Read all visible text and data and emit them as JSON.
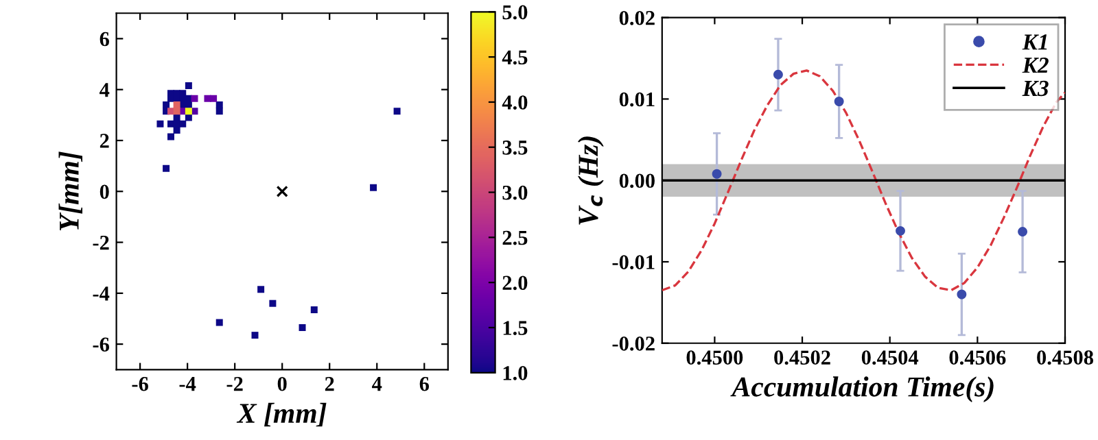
{
  "chart_data": [
    {
      "type": "scatter",
      "xlabel": "X [mm]",
      "ylabel": "Y[mm]",
      "xlim": [
        -7,
        7
      ],
      "ylim": [
        -7,
        7
      ],
      "xticks": [
        -6,
        -4,
        -2,
        0,
        2,
        4,
        6
      ],
      "yticks": [
        -6,
        -4,
        -2,
        0,
        2,
        4,
        6
      ],
      "grid": false,
      "legend": false,
      "clim": [
        1,
        5
      ],
      "cticks": [
        {
          "value": 1,
          "label": "1.0"
        },
        {
          "value": 1.5,
          "label": "1.5"
        },
        {
          "value": 2,
          "label": "2.0"
        },
        {
          "value": 2.5,
          "label": "2.5"
        },
        {
          "value": 3,
          "label": "3.0"
        },
        {
          "value": 3.5,
          "label": "3.5"
        },
        {
          "value": 4,
          "label": "4.0"
        },
        {
          "value": 4.5,
          "label": "4.5"
        },
        {
          "value": 5,
          "label": "5.0"
        }
      ],
      "series": [
        {
          "marker": "square",
          "color": "#0d0887",
          "x": [
            -4.9,
            4.85,
            3.85,
            -0.9,
            -0.4,
            1.35,
            -2.65,
            -1.15,
            0.85,
            -3.95,
            -4.7,
            -4.45,
            -4.2,
            -4.7,
            -4.45,
            -4.2,
            -3.95,
            -2.65,
            -2.65,
            -4.9,
            -4.2,
            -3.95,
            -4.9,
            -4.45,
            -3.95,
            -5.15,
            -4.7,
            -4.45,
            -4.2,
            -4.45,
            -4.7
          ],
          "values": [
            0.9,
            3.15,
            0.15,
            -3.85,
            -4.4,
            -4.65,
            -5.15,
            -5.65,
            -5.35,
            4.15,
            3.85,
            3.85,
            3.85,
            3.65,
            3.65,
            3.65,
            3.65,
            3.4,
            3.15,
            3.4,
            3.4,
            3.4,
            3.15,
            2.9,
            2.9,
            2.65,
            2.65,
            2.65,
            2.65,
            2.4,
            2.15
          ]
        },
        {
          "marker": "square",
          "color": "#6a00a8",
          "x": [
            -3.7,
            -3.15,
            -2.9,
            -4.2
          ],
          "values": [
            3.65,
            3.65,
            3.65,
            3.15
          ]
        },
        {
          "marker": "square",
          "color": "#5302a3",
          "x": [
            -3.7
          ],
          "values": [
            3.15
          ]
        },
        {
          "marker": "square",
          "color": "#d35171",
          "x": [
            -4.7
          ],
          "values": [
            3.15
          ]
        },
        {
          "marker": "square",
          "color": "#e16462",
          "x": [
            -4.45,
            -4.45
          ],
          "values": [
            3.4,
            3.15
          ]
        },
        {
          "marker": "square",
          "color": "#f0f921",
          "x": [
            -3.95
          ],
          "values": [
            3.15
          ]
        },
        {
          "marker": "cross",
          "color": "#000000",
          "x": [
            0
          ],
          "values": [
            0
          ]
        }
      ]
    },
    {
      "type": "scatter",
      "xlabel": "Accumulation Time(s)",
      "ylabel": "V$_{c}$ (Hz)",
      "xlim": [
        0.44988,
        0.4508
      ],
      "ylim": [
        -0.02,
        0.02
      ],
      "xticks": [
        {
          "value": 0.45,
          "label": "0.4500"
        },
        {
          "value": 0.4502,
          "label": "0.4502"
        },
        {
          "value": 0.4504,
          "label": "0.4504"
        },
        {
          "value": 0.4506,
          "label": "0.4506"
        },
        {
          "value": 0.4508,
          "label": "0.4508"
        }
      ],
      "yticks": [
        {
          "value": -0.02,
          "label": "-0.02"
        },
        {
          "value": -0.01,
          "label": "-0.01"
        },
        {
          "value": 0,
          "label": "0.00"
        },
        {
          "value": 0.01,
          "label": "0.01"
        },
        {
          "value": 0.02,
          "label": "0.02"
        }
      ],
      "grid": false,
      "legend": "top right",
      "bands": [
        {
          "axis": "y",
          "from": -0.002,
          "to": 0.002,
          "color": "#c0c0c0"
        }
      ],
      "series": [
        {
          "name": "K1",
          "type": "scatter",
          "marker": "circle",
          "color": "#3a4bab",
          "x": [
            0.450005,
            0.450145,
            0.450284,
            0.450424,
            0.450564,
            0.450703
          ],
          "values": [
            0.0008,
            0.013,
            0.0097,
            -0.0062,
            -0.014,
            -0.0063
          ],
          "errors": [
            0.005,
            0.0044,
            0.0045,
            0.0049,
            0.005,
            0.005
          ]
        },
        {
          "name": "K2",
          "type": "line",
          "line_style": "dashed",
          "color": "#d9363e",
          "x": [
            0.44988,
            0.44991,
            0.44994,
            0.44997,
            0.45,
            0.45003,
            0.45006,
            0.45009,
            0.45012,
            0.45015,
            0.45018,
            0.45021,
            0.45024,
            0.45027,
            0.4503,
            0.45033,
            0.45036,
            0.45039,
            0.45042,
            0.45045,
            0.45048,
            0.45051,
            0.45054,
            0.45057,
            0.4506,
            0.45063,
            0.45066,
            0.45069,
            0.45072,
            0.45075,
            0.45078,
            0.4508
          ],
          "values": [
            -0.0135,
            -0.0129,
            -0.0112,
            -0.0086,
            -0.0053,
            -0.0015,
            0.0024,
            0.0061,
            0.0092,
            0.0117,
            0.0131,
            0.0135,
            0.0128,
            0.011,
            0.0083,
            0.0049,
            0.0011,
            -0.0028,
            -0.0064,
            -0.0095,
            -0.0118,
            -0.0132,
            -0.0135,
            -0.0126,
            -0.0107,
            -0.008,
            -0.0046,
            -0.0009,
            0.003,
            0.0066,
            0.0096,
            0.0108
          ]
        },
        {
          "name": "K3",
          "type": "line",
          "line_style": "solid",
          "color": "#000000",
          "x": [
            0.44988,
            0.4508
          ],
          "values": [
            0,
            0
          ]
        }
      ]
    }
  ]
}
